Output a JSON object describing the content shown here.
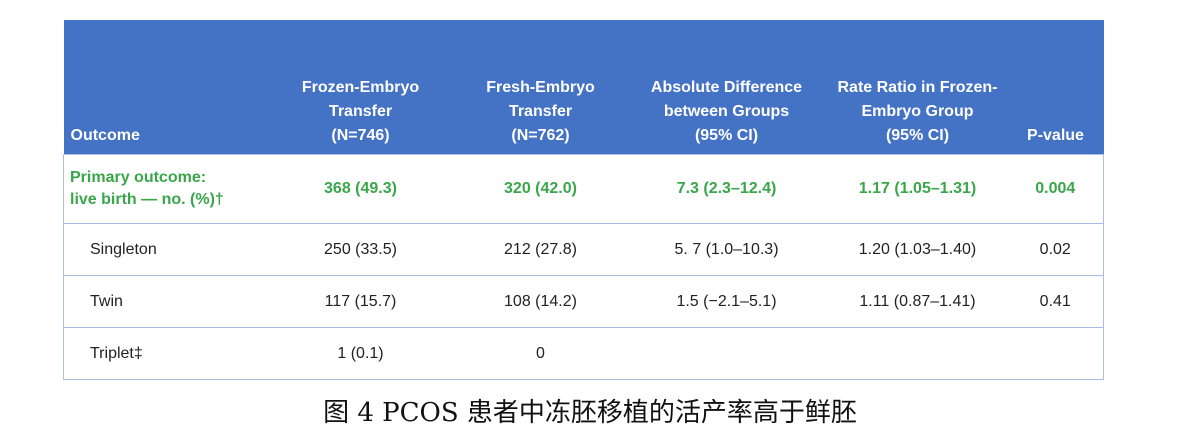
{
  "table": {
    "header": [
      "Outcome",
      [
        "Frozen-Embryo",
        "Transfer",
        "(N=746)"
      ],
      [
        "Fresh-Embryo",
        "Transfer",
        "(N=762)"
      ],
      [
        "Absolute Difference",
        "between Groups",
        "(95% CI)"
      ],
      [
        "Rate Ratio in Frozen-",
        "Embryo Group",
        "(95% CI)"
      ],
      "P-value"
    ],
    "rows": [
      [
        [
          "Primary outcome:",
          "live birth — no. (%)†"
        ],
        "368 (49.3)",
        "320 (42.0)",
        "7.3 (2.3–12.4)",
        "1.17 (1.05–1.31)",
        "0.004"
      ],
      [
        "Singleton",
        "250 (33.5)",
        "212 (27.8)",
        "5. 7 (1.0–10.3)",
        "1.20 (1.03–1.40)",
        "0.02"
      ],
      [
        "Twin",
        "117 (15.7)",
        "108 (14.2)",
        "1.5 (−2.1–5.1)",
        "1.11 (0.87–1.41)",
        "0.41"
      ],
      [
        "Triplet‡",
        "1 (0.1)",
        "0"
      ]
    ]
  },
  "caption": "图 4 PCOS 患者中冻胚移植的活产率高于鲜胚"
}
